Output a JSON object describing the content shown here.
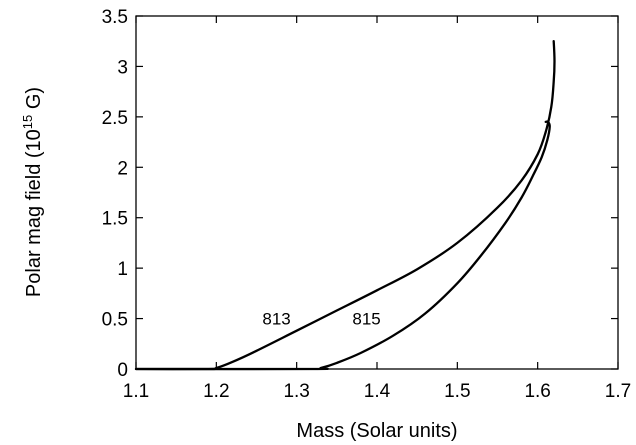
{
  "chart_data": {
    "type": "line",
    "xlabel": "Mass (Solar units)",
    "ylabel_main": "Polar mag field (10",
    "ylabel_exp": "15",
    "ylabel_unit": " G)",
    "xlim": [
      1.1,
      1.7
    ],
    "ylim": [
      0,
      3.5
    ],
    "xticks": [
      1.1,
      1.2,
      1.3,
      1.4,
      1.5,
      1.6,
      1.7
    ],
    "xtick_labels": [
      "1.1",
      "1.2",
      "1.3",
      "1.4",
      "1.5",
      "1.6",
      "1.7"
    ],
    "yticks": [
      0,
      0.5,
      1,
      1.5,
      2,
      2.5,
      3,
      3.5
    ],
    "ytick_labels": [
      "0",
      "0.5",
      "1",
      "1.5",
      "2",
      "2.5",
      "3",
      "3.5"
    ],
    "grid": false,
    "series": [
      {
        "name": "813",
        "x": [
          1.1,
          1.19,
          1.2,
          1.22,
          1.25,
          1.3,
          1.35,
          1.4,
          1.45,
          1.5,
          1.55,
          1.58,
          1.6,
          1.61,
          1.617,
          1.62,
          1.621,
          1.62
        ],
        "y": [
          0,
          0,
          0.01,
          0.07,
          0.18,
          0.38,
          0.58,
          0.78,
          0.99,
          1.25,
          1.6,
          1.87,
          2.13,
          2.35,
          2.6,
          2.85,
          3.05,
          3.25
        ]
      },
      {
        "name": "815",
        "x": [
          1.1,
          1.32,
          1.33,
          1.35,
          1.38,
          1.42,
          1.46,
          1.5,
          1.53,
          1.56,
          1.58,
          1.595,
          1.605,
          1.612,
          1.615,
          1.613,
          1.61
        ],
        "y": [
          0,
          0,
          0.01,
          0.06,
          0.16,
          0.33,
          0.55,
          0.85,
          1.13,
          1.45,
          1.7,
          1.93,
          2.1,
          2.27,
          2.4,
          2.45,
          2.45
        ]
      }
    ],
    "annotations": [
      {
        "text": "813",
        "x": 1.275,
        "y": 0.5
      },
      {
        "text": "815",
        "x": 1.387,
        "y": 0.5
      }
    ]
  }
}
